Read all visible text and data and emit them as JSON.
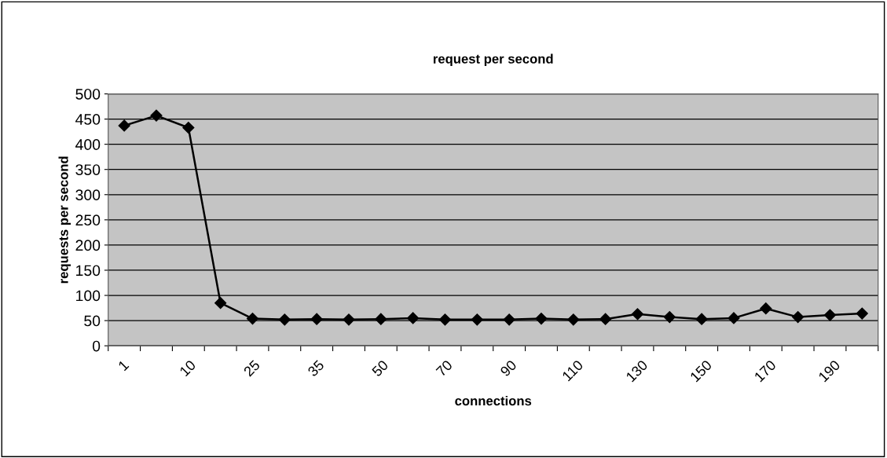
{
  "chart_data": {
    "type": "line",
    "title": "request per second",
    "xlabel": "connections",
    "ylabel": "requests per second",
    "categories": [
      "1",
      null,
      "10",
      null,
      "25",
      null,
      "35",
      null,
      "50",
      null,
      "70",
      null,
      "90",
      null,
      "110",
      null,
      "130",
      null,
      "150",
      null,
      "170",
      null,
      "190",
      null
    ],
    "series": [
      {
        "color": "#000000",
        "values": [
          437,
          457,
          433,
          85,
          54,
          52,
          53,
          52,
          53,
          55,
          52,
          52,
          52,
          54,
          52,
          53,
          63,
          57,
          53,
          55,
          74,
          57,
          61,
          64
        ]
      }
    ],
    "ylim": [
      0,
      500
    ],
    "yticks": [
      0,
      50,
      100,
      150,
      200,
      250,
      300,
      350,
      400,
      450,
      500
    ],
    "grid": "y",
    "marker": "diamond",
    "line_style": "solid",
    "legend": false
  }
}
